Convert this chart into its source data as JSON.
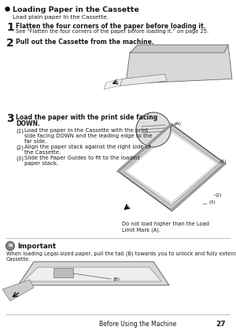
{
  "page_bg": "#ffffff",
  "title": "Loading Paper in the Cassette",
  "subtitle": "Load plain paper in the Cassette.",
  "step1_num": "1",
  "step1_text": "Flatten the four corners of the paper before loading it.",
  "step1_sub": "See “Flatten the four corners of the paper before loading it.” on page 25.",
  "step2_num": "2",
  "step2_text": "Pull out the Cassette from the machine.",
  "step3_num": "3",
  "step3_line1": "Load the paper with the print side facing",
  "step3_line2": "DOWN.",
  "sub1_label": "(1)",
  "sub1_text": "Load the paper in the Cassette with the print\nside facing DOWN and the leading edge to the\nfar side.",
  "sub2_label": "(2)",
  "sub2_text": "Align the paper stack against the right side of\nthe Cassette.",
  "sub3_label": "(3)",
  "sub3_text": "Slide the Paper Guides to fit to the loaded\npaper stack.",
  "label_A": "(A)",
  "label_1": "(1)",
  "label_2": "(2)",
  "label_3": "(3)",
  "caption": "Do not load higher than the Load\nLimit Mark (A).",
  "important_title": "Important",
  "important_text": "When loading Legal-sized paper, pull the tab (B) towards you to unlock and fully extend the\nCassette.",
  "label_B": "(B)",
  "footer_text": "Before Using the Machine",
  "footer_page": "27",
  "text_color": "#1a1a1a",
  "gray_light": "#dddddd",
  "gray_mid": "#aaaaaa",
  "gray_dark": "#555555"
}
